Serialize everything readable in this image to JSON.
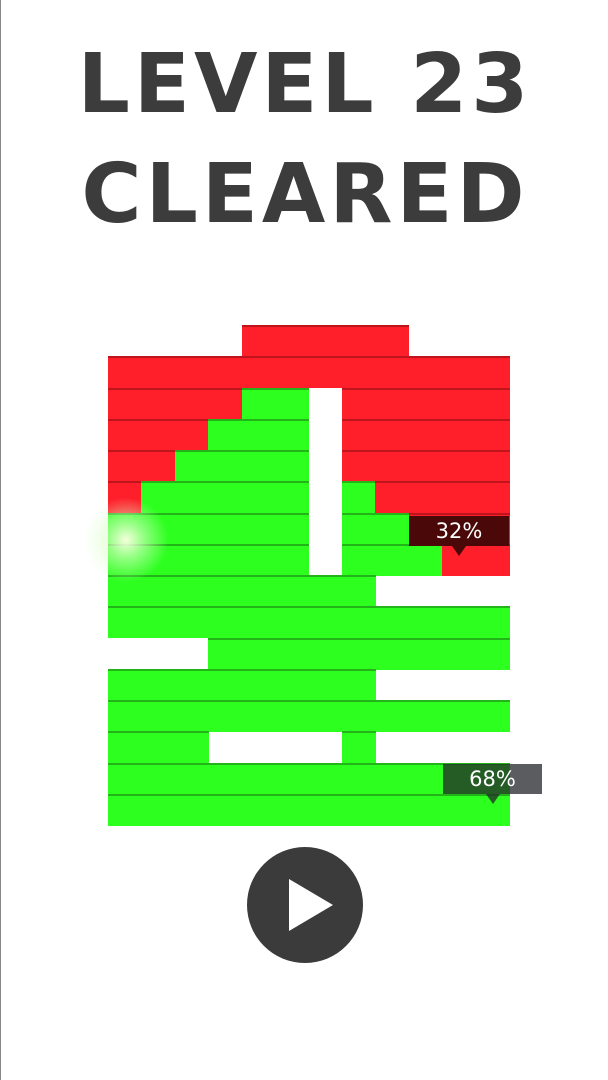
{
  "title": {
    "line1": "LEVEL 23",
    "line2": "CLEARED"
  },
  "board": {
    "columns": 12,
    "colors": {
      "R": "#ff1f2a",
      "G": "#2dff1f"
    },
    "rows": [
      "....RRRRR...",
      "RRRRRRRRRRRR",
      "RRRRGG.RRRRR",
      "RRRGGG.RRRRR",
      "RRGGGG.RRRRR",
      "RGGGGG.GRRRR",
      "GGGGGG.GGRRR",
      "GGGGGG.GGGRR",
      "GGGGGGGG....",
      "GGGGGGGGGGGG",
      "...GGGGGGGGG",
      "GGGGGGGG....",
      "GGGGGGGGGGGG",
      "GGG....G....",
      "GGGGGGGGGGGG",
      "GGGGGGGGGGGG"
    ]
  },
  "scores": {
    "red": "32%",
    "green": "68%"
  },
  "play_button": {
    "icon": "play-icon"
  }
}
